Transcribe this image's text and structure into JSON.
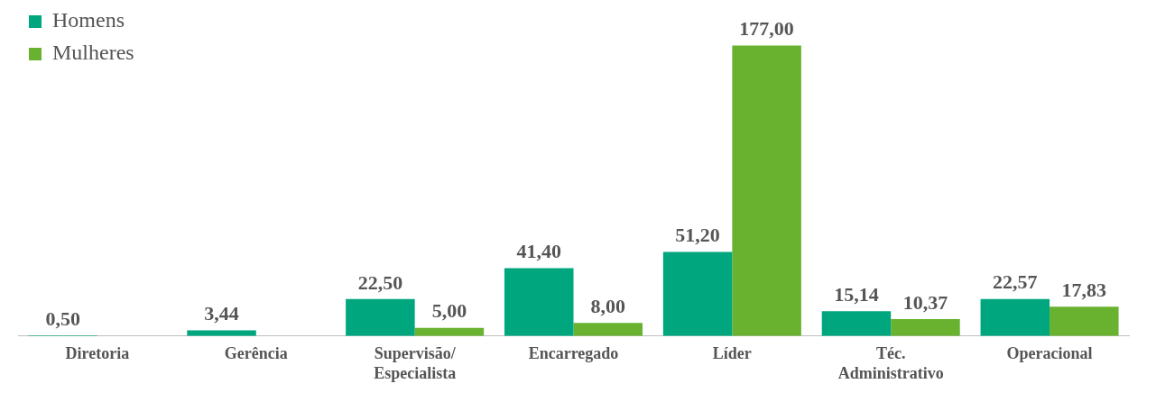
{
  "chart_data": {
    "type": "bar",
    "categories": [
      "Diretoria",
      "Gerência",
      "Supervisão/ Especialista",
      "Encarregado",
      "Líder",
      "Téc. Administrativo",
      "Operacional"
    ],
    "series": [
      {
        "name": "Homens",
        "color": "#00a67e",
        "values": [
          0.5,
          3.44,
          22.5,
          41.4,
          51.2,
          15.14,
          22.57
        ],
        "value_labels": [
          "0,50",
          "3,44",
          "22,50",
          "41,40",
          "51,20",
          "15,14",
          "22,57"
        ]
      },
      {
        "name": "Mulheres",
        "color": "#68b22f",
        "values": [
          null,
          null,
          5.0,
          8.0,
          177.0,
          10.37,
          17.83
        ],
        "value_labels": [
          null,
          null,
          "5,00",
          "8,00",
          "177,00",
          "10,37",
          "17,83"
        ]
      }
    ],
    "legend": "top left",
    "grid": false
  }
}
